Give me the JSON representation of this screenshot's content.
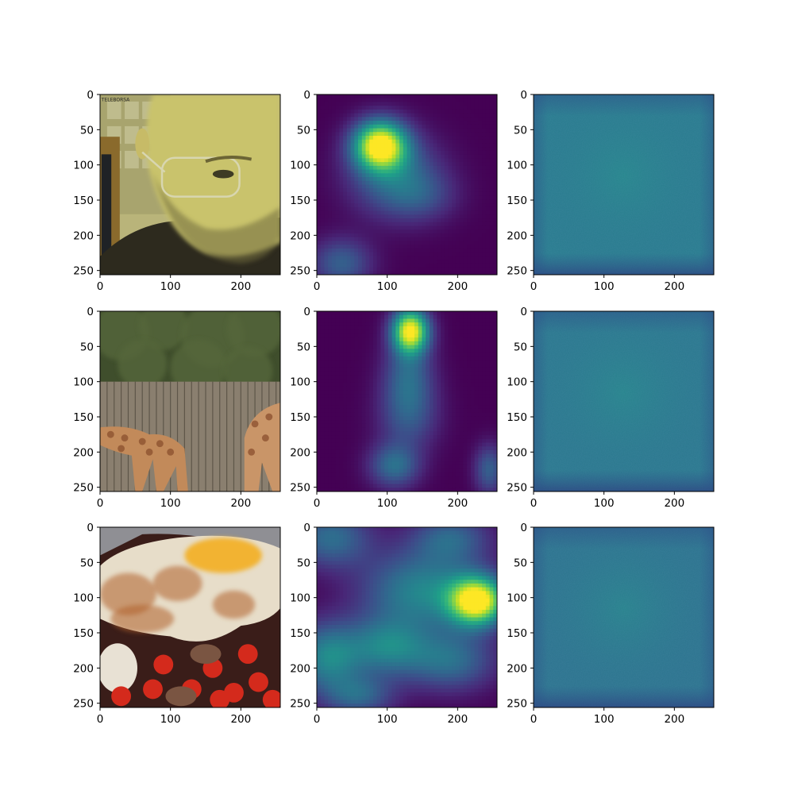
{
  "chart_data": [
    {
      "type": "heatmap",
      "content": "photo",
      "image": "face-photo",
      "xlim": [
        0,
        256
      ],
      "ylim": [
        256,
        0
      ],
      "x_ticks": [
        "0",
        "100",
        "200"
      ],
      "y_ticks": [
        "0",
        "50",
        "100",
        "150",
        "200",
        "250"
      ],
      "overlay_text": "TELEBORSA"
    },
    {
      "type": "heatmap",
      "content": "saliency",
      "colormap": "viridis",
      "xlim": [
        0,
        256
      ],
      "ylim": [
        256,
        0
      ],
      "x_ticks": [
        "0",
        "100",
        "200"
      ],
      "y_ticks": [
        "0",
        "50",
        "100",
        "150",
        "200",
        "250"
      ],
      "blobs": [
        {
          "x": 90,
          "y": 72,
          "sx": 26,
          "sy": 24,
          "a": 1.0
        },
        {
          "x": 110,
          "y": 115,
          "sx": 45,
          "sy": 40,
          "a": 0.35
        },
        {
          "x": 35,
          "y": 240,
          "sx": 30,
          "sy": 25,
          "a": 0.3
        },
        {
          "x": 150,
          "y": 145,
          "sx": 35,
          "sy": 25,
          "a": 0.15
        }
      ]
    },
    {
      "type": "heatmap",
      "content": "reconstruction",
      "colormap": "viridis",
      "level": 0.42,
      "xlim": [
        0,
        256
      ],
      "ylim": [
        256,
        0
      ],
      "x_ticks": [
        "0",
        "100",
        "200"
      ],
      "y_ticks": [
        "0",
        "50",
        "100",
        "150",
        "200",
        "250"
      ]
    },
    {
      "type": "heatmap",
      "content": "photo",
      "image": "giraffe-photo",
      "xlim": [
        0,
        256
      ],
      "ylim": [
        256,
        0
      ],
      "x_ticks": [
        "0",
        "100",
        "200"
      ],
      "y_ticks": [
        "0",
        "50",
        "100",
        "150",
        "200",
        "250"
      ]
    },
    {
      "type": "heatmap",
      "content": "saliency",
      "colormap": "viridis",
      "xlim": [
        0,
        256
      ],
      "ylim": [
        256,
        0
      ],
      "x_ticks": [
        "0",
        "100",
        "200"
      ],
      "y_ticks": [
        "0",
        "50",
        "100",
        "150",
        "200",
        "250"
      ],
      "blobs": [
        {
          "x": 133,
          "y": 28,
          "sx": 18,
          "sy": 22,
          "a": 1.0
        },
        {
          "x": 130,
          "y": 90,
          "sx": 25,
          "sy": 35,
          "a": 0.3
        },
        {
          "x": 130,
          "y": 150,
          "sx": 30,
          "sy": 35,
          "a": 0.25
        },
        {
          "x": 110,
          "y": 220,
          "sx": 25,
          "sy": 22,
          "a": 0.35
        },
        {
          "x": 245,
          "y": 225,
          "sx": 15,
          "sy": 25,
          "a": 0.3
        }
      ]
    },
    {
      "type": "heatmap",
      "content": "reconstruction",
      "colormap": "viridis",
      "level": 0.4,
      "xlim": [
        0,
        256
      ],
      "ylim": [
        256,
        0
      ],
      "x_ticks": [
        "0",
        "100",
        "200"
      ],
      "y_ticks": [
        "0",
        "50",
        "100",
        "150",
        "200",
        "250"
      ]
    },
    {
      "type": "heatmap",
      "content": "photo",
      "image": "food-photo",
      "xlim": [
        0,
        256
      ],
      "ylim": [
        256,
        0
      ],
      "x_ticks": [
        "0",
        "100",
        "200"
      ],
      "y_ticks": [
        "0",
        "50",
        "100",
        "150",
        "200",
        "250"
      ]
    },
    {
      "type": "heatmap",
      "content": "saliency",
      "colormap": "viridis",
      "xlim": [
        0,
        256
      ],
      "ylim": [
        256,
        0
      ],
      "x_ticks": [
        "0",
        "100",
        "200"
      ],
      "y_ticks": [
        "0",
        "50",
        "100",
        "150",
        "200",
        "250"
      ],
      "blobs": [
        {
          "x": 228,
          "y": 105,
          "sx": 28,
          "sy": 24,
          "a": 1.0
        },
        {
          "x": 150,
          "y": 90,
          "sx": 60,
          "sy": 40,
          "a": 0.45
        },
        {
          "x": 20,
          "y": 15,
          "sx": 40,
          "sy": 30,
          "a": 0.35
        },
        {
          "x": 15,
          "y": 185,
          "sx": 35,
          "sy": 35,
          "a": 0.45
        },
        {
          "x": 100,
          "y": 170,
          "sx": 40,
          "sy": 30,
          "a": 0.4
        },
        {
          "x": 190,
          "y": 190,
          "sx": 45,
          "sy": 30,
          "a": 0.35
        },
        {
          "x": 60,
          "y": 240,
          "sx": 35,
          "sy": 20,
          "a": 0.3
        },
        {
          "x": 190,
          "y": 15,
          "sx": 40,
          "sy": 25,
          "a": 0.3
        }
      ]
    },
    {
      "type": "heatmap",
      "content": "reconstruction",
      "colormap": "viridis",
      "level": 0.38,
      "xlim": [
        0,
        256
      ],
      "ylim": [
        256,
        0
      ],
      "x_ticks": [
        "0",
        "100",
        "200"
      ],
      "y_ticks": [
        "0",
        "50",
        "100",
        "150",
        "200",
        "250"
      ]
    }
  ]
}
